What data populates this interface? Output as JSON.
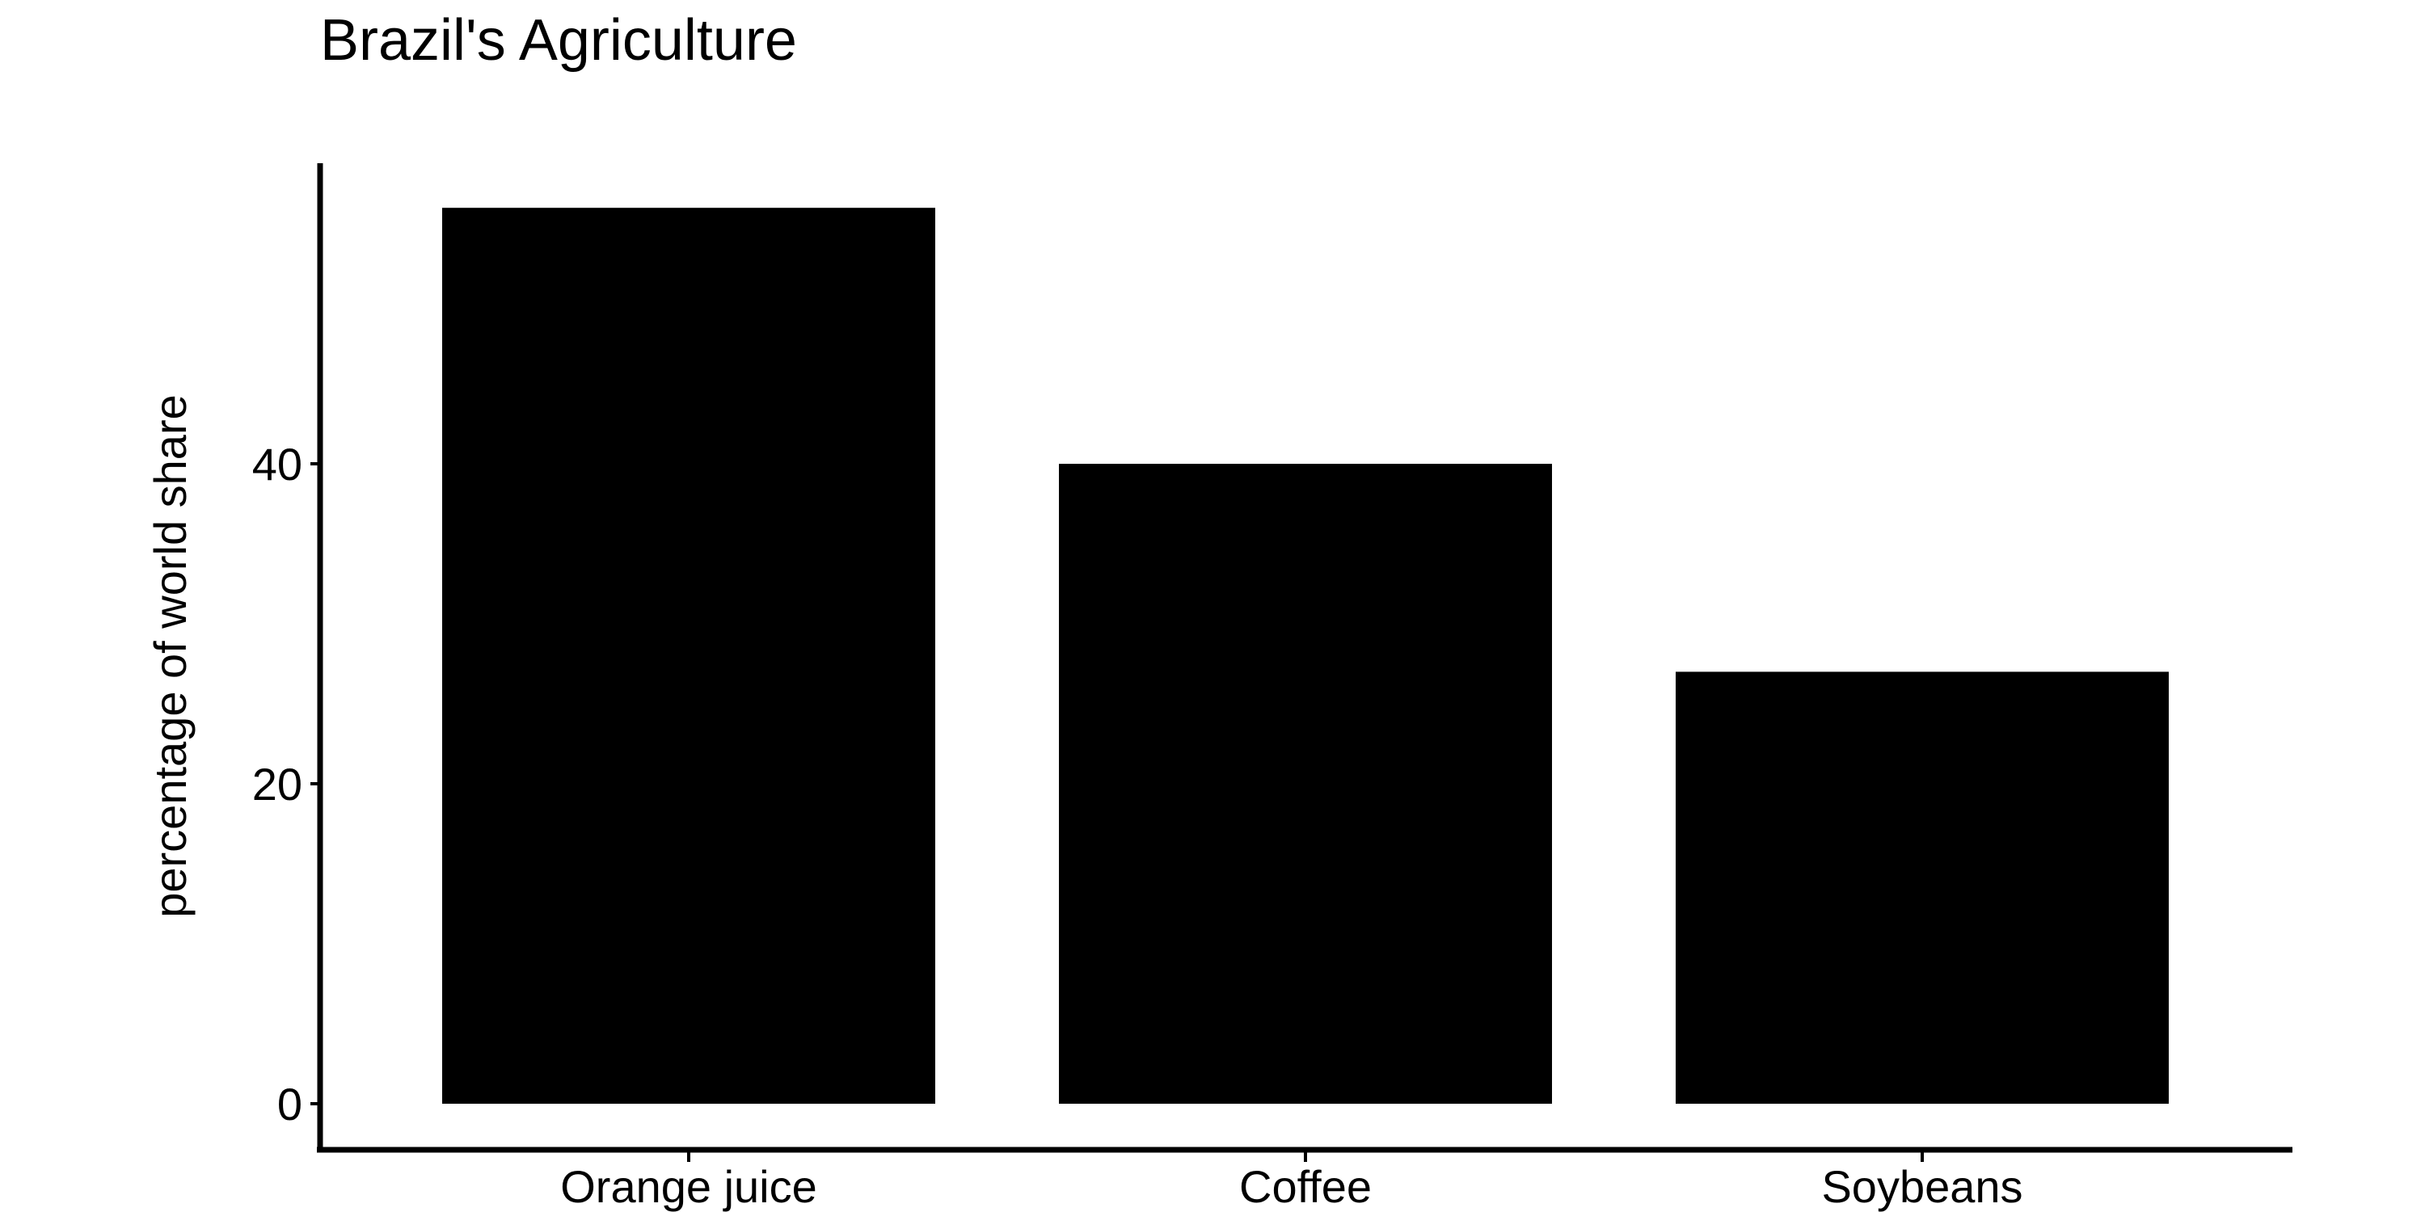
{
  "chart_data": {
    "type": "bar",
    "title": "Brazil's Agriculture",
    "xlabel": "",
    "ylabel": "percentage of world share",
    "categories": [
      "Orange juice",
      "Coffee",
      "Soybeans"
    ],
    "values": [
      56,
      40,
      27
    ],
    "ylim": [
      0,
      58
    ],
    "yticks": [
      "0",
      "20",
      "40"
    ],
    "grid": false,
    "legend": "none",
    "bar_color": "#000000"
  }
}
